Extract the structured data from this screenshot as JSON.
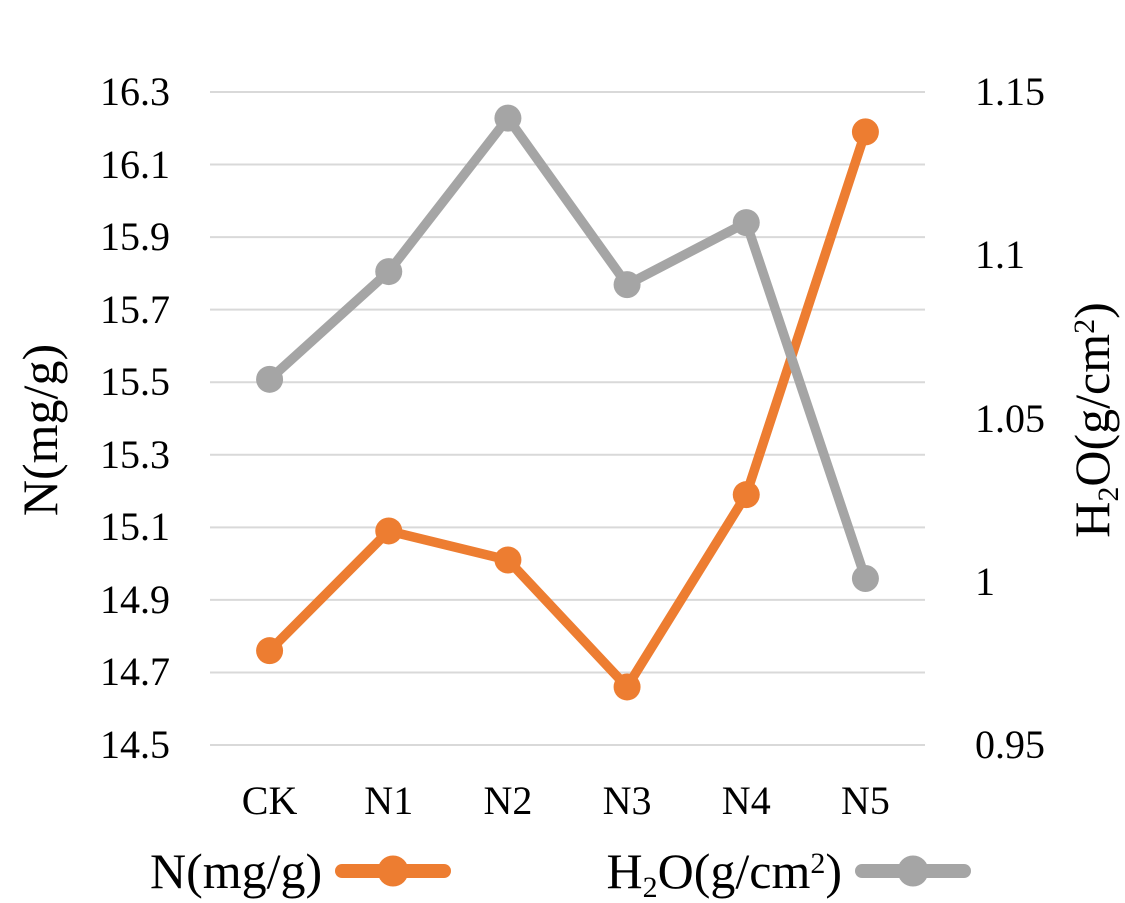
{
  "chart_data": {
    "type": "line",
    "categories": [
      "CK",
      "N1",
      "N2",
      "N3",
      "N4",
      "N5"
    ],
    "series": [
      {
        "name": "N(mg/g)",
        "axis": "left",
        "color": "#ED7D31",
        "values": [
          14.76,
          15.09,
          15.01,
          14.66,
          15.19,
          16.19
        ]
      },
      {
        "name": "H2O(g/cm2)",
        "axis": "right",
        "color": "#A5A5A5",
        "values": [
          1.062,
          1.095,
          1.142,
          1.091,
          1.11,
          1.001
        ]
      }
    ],
    "left_axis": {
      "title": "N(mg/g)",
      "ticks": [
        "16.3",
        "16.1",
        "15.9",
        "15.7",
        "15.5",
        "15.3",
        "15.1",
        "14.9",
        "14.7",
        "14.5"
      ],
      "min": 14.5,
      "max": 16.3
    },
    "right_axis": {
      "ticks": [
        "1.15",
        "1.1",
        "1.05",
        "1",
        "0.95"
      ],
      "min": 0.95,
      "max": 1.15
    },
    "grid": true,
    "gridline_color": "#D9D9D9",
    "legend_position": "bottom",
    "title": "",
    "xlabel": ""
  },
  "legend": {
    "n_label": "N(mg/g)",
    "h2o_parts": {
      "pre": "H",
      "sub": "2",
      "mid": "O(g/cm",
      "sup": "2",
      "post": ")"
    }
  }
}
